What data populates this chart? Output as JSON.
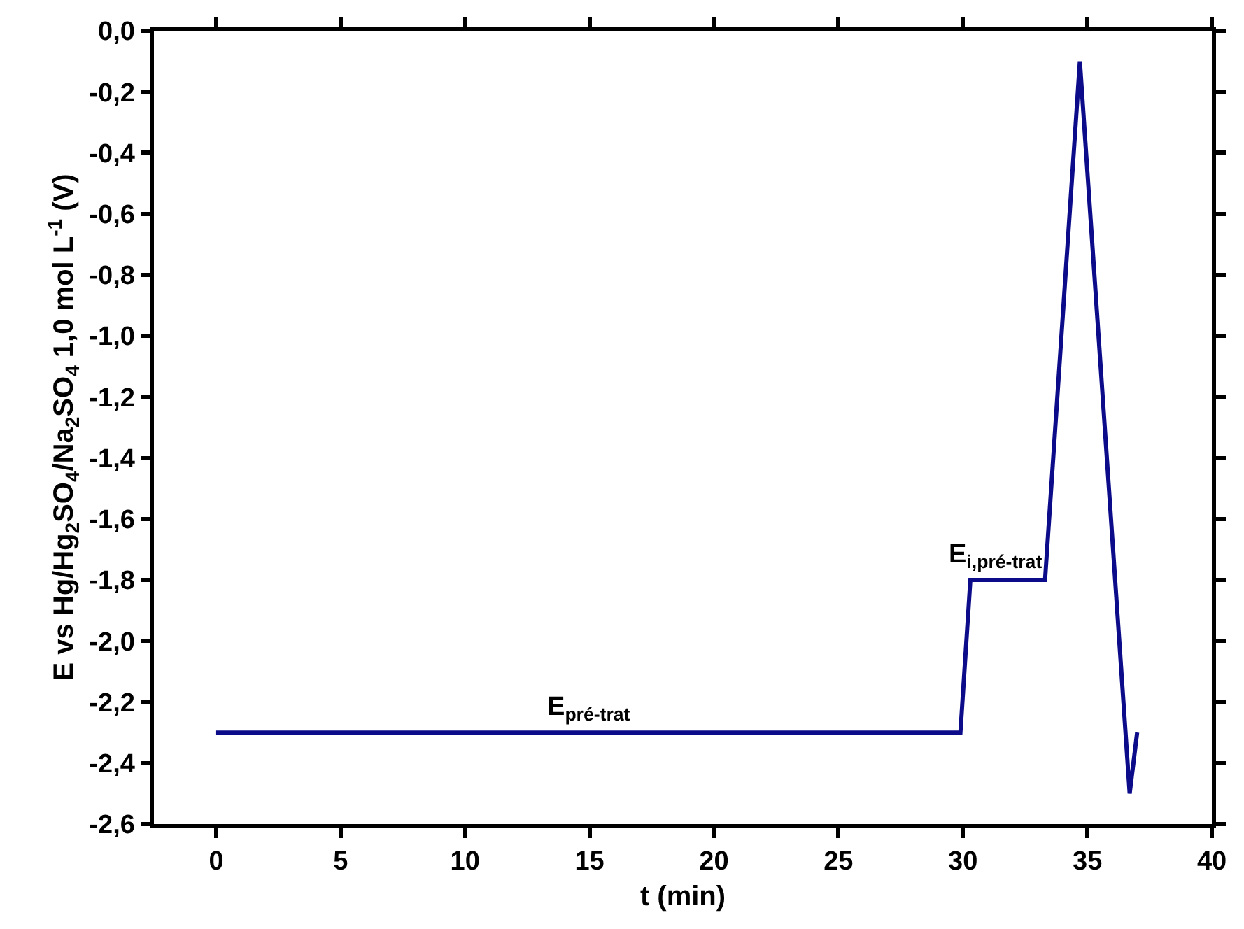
{
  "chart_data": {
    "type": "line",
    "xlabel": "t (min)",
    "ylabel": "E vs Hg/Hg$_{2}$SO$_{4}$/Na$_{2}$SO$_{4}$ 1,0 mol L$^{-1}$ (V)",
    "x": [
      0,
      29.9,
      30.3,
      33.3,
      34.7,
      36.7,
      37.0
    ],
    "series": [
      {
        "color": "#0c0c8a",
        "values": [
          -2.3,
          -2.3,
          -1.8,
          -1.8,
          -0.1,
          -2.5,
          -2.3
        ]
      }
    ],
    "xlim": [
      -2.5,
      40
    ],
    "xticks": [
      0,
      5,
      10,
      15,
      20,
      25,
      30,
      35,
      40
    ],
    "ylim": [
      -2.6,
      0.0
    ],
    "yticks": [
      {
        "value": 0.0,
        "label": "0,0"
      },
      {
        "value": -0.2,
        "label": "-0,2"
      },
      {
        "value": -0.4,
        "label": "-0,4"
      },
      {
        "value": -0.6,
        "label": "-0,6"
      },
      {
        "value": -0.8,
        "label": "-0,8"
      },
      {
        "value": -1.0,
        "label": "-1,0"
      },
      {
        "value": -1.2,
        "label": "-1,2"
      },
      {
        "value": -1.4,
        "label": "-1,4"
      },
      {
        "value": -1.6,
        "label": "-1,6"
      },
      {
        "value": -1.8,
        "label": "-1,8"
      },
      {
        "value": -2.0,
        "label": "-2,0"
      },
      {
        "value": -2.2,
        "label": "-2,2"
      },
      {
        "value": -2.4,
        "label": "-2,4"
      },
      {
        "value": -2.6,
        "label": "-2,6"
      }
    ],
    "annotations": [
      {
        "text": "E$_{pré-trat}$",
        "x": 15,
        "y": -2.3
      },
      {
        "text": "E$_{i,pré-trat}$",
        "x": 31.3,
        "y": -1.8
      }
    ],
    "marker": "none",
    "line_style": "solid"
  }
}
